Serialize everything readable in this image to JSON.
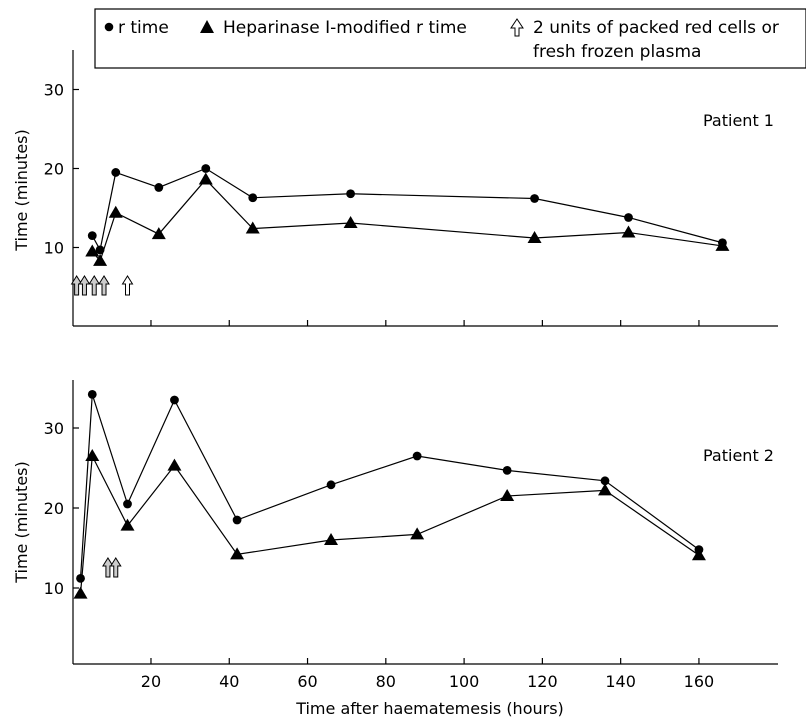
{
  "legend": {
    "entries": [
      {
        "marker": "circle",
        "label": "r time"
      },
      {
        "marker": "triangle",
        "label": "Heparinase I-modified r time"
      },
      {
        "marker": "arrow",
        "label_lines": [
          "2 units of packed red cells or",
          "fresh frozen plasma"
        ]
      }
    ]
  },
  "colors": {
    "line": "#000000",
    "arrow_fill": "#cccccc",
    "background": "#ffffff"
  },
  "shared_xlabel": "Time after haematemesis (hours)",
  "chart_data": [
    {
      "type": "line",
      "annotation": "Patient 1",
      "ylabel": "Time (minutes)",
      "xlim": [
        0,
        178
      ],
      "ylim": [
        0,
        37
      ],
      "yticks": [
        10,
        20,
        30
      ],
      "xticks": [
        20,
        40,
        60,
        80,
        100,
        120,
        140,
        160
      ],
      "grid": false,
      "series": [
        {
          "name": "r time",
          "marker": "circle",
          "x": [
            5,
            7,
            11,
            22,
            34,
            46,
            71,
            118,
            142,
            166
          ],
          "y": [
            11.5,
            9.7,
            19.5,
            17.6,
            20,
            16.3,
            16.8,
            16.2,
            13.8,
            10.6
          ]
        },
        {
          "name": "Heparinase I-modified r time",
          "marker": "triangle",
          "x": [
            5,
            7,
            11,
            22,
            34,
            46,
            71,
            118,
            142,
            166
          ],
          "y": [
            9.5,
            8.3,
            14.4,
            11.7,
            18.6,
            12.4,
            13.1,
            11.2,
            11.9,
            10.2
          ]
        }
      ],
      "transfusion_arrows_x": [
        1,
        3,
        5.5,
        8,
        14
      ]
    },
    {
      "type": "line",
      "annotation": "Patient 2",
      "ylabel": "Time (minutes)",
      "xlim": [
        0,
        178
      ],
      "ylim": [
        0,
        35
      ],
      "yticks": [
        10,
        20,
        30
      ],
      "xticks": [
        20,
        40,
        60,
        80,
        100,
        120,
        140,
        160
      ],
      "xtick_labels": [
        "20",
        "40",
        "60",
        "80",
        "100",
        "120",
        "140",
        "160"
      ],
      "grid": false,
      "series": [
        {
          "name": "r time",
          "marker": "circle",
          "x": [
            2,
            5,
            14,
            26,
            42,
            66,
            88,
            111,
            136,
            160
          ],
          "y": [
            11.2,
            34.2,
            20.5,
            33.5,
            18.5,
            22.9,
            26.5,
            24.7,
            23.4,
            14.8
          ]
        },
        {
          "name": "Heparinase I-modified r time",
          "marker": "triangle",
          "x": [
            2,
            5,
            14,
            26,
            42,
            66,
            88,
            111,
            136,
            160
          ],
          "y": [
            9.3,
            26.5,
            17.8,
            25.3,
            14.2,
            16,
            16.7,
            21.5,
            22.2,
            14.1
          ]
        }
      ],
      "transfusion_arrows_x": [
        9,
        11
      ]
    }
  ]
}
